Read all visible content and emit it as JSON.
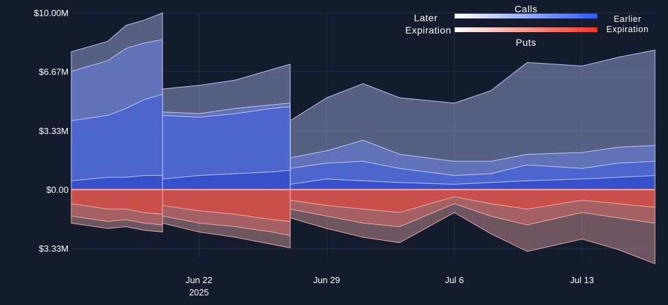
{
  "chart_data": {
    "type": "area",
    "x_range": [
      "2025-06-15",
      "2025-07-17"
    ],
    "ylim": [
      -3.9,
      10.0
    ],
    "y_units": "millions USD",
    "y_ticks": [
      {
        "value": 10.0,
        "label": "$10.00M"
      },
      {
        "value": 6.67,
        "label": "$6.67M"
      },
      {
        "value": 3.33,
        "label": "$3.33M"
      },
      {
        "value": 0.0,
        "label": "$0.00"
      },
      {
        "value": -3.33,
        "label": "$3.33M"
      }
    ],
    "x_ticks": [
      {
        "date": "2025-06-22",
        "label": "Jun 22",
        "sublabel": "2025"
      },
      {
        "date": "2025-06-29",
        "label": "Jun 29"
      },
      {
        "date": "2025-07-06",
        "label": "Jul 6"
      },
      {
        "date": "2025-07-13",
        "label": "Jul 13"
      }
    ],
    "grid": true,
    "legend": {
      "position": "top-right",
      "calls_label": "Calls",
      "puts_label": "Puts",
      "left_line1": "Later",
      "left_line2": "Expiration",
      "right_line1": "Earlier",
      "right_line2": "Expiration",
      "calls_gradient": [
        "#ffffff",
        "#2f5cf0"
      ],
      "puts_gradient": [
        "#ffffff",
        "#ec3526"
      ]
    },
    "expiration_segments": [
      {
        "start": "2025-06-15",
        "end": "2025-06-20"
      },
      {
        "start": "2025-06-20",
        "end": "2025-06-27"
      },
      {
        "start": "2025-06-27",
        "end": "2025-07-17"
      }
    ],
    "series": [
      {
        "side": "calls",
        "layer": 1,
        "points": [
          {
            "x": "2025-06-15",
            "y": 7.8
          },
          {
            "x": "2025-06-17",
            "y": 8.4
          },
          {
            "x": "2025-06-18",
            "y": 9.3
          },
          {
            "x": "2025-06-19",
            "y": 9.6
          },
          {
            "x": "2025-06-20",
            "y": 10.0
          },
          {
            "x": "2025-06-20",
            "y": 5.7
          },
          {
            "x": "2025-06-22",
            "y": 5.9
          },
          {
            "x": "2025-06-24",
            "y": 6.2
          },
          {
            "x": "2025-06-26",
            "y": 6.8
          },
          {
            "x": "2025-06-27",
            "y": 7.1
          },
          {
            "x": "2025-06-27",
            "y": 3.9
          },
          {
            "x": "2025-06-29",
            "y": 5.2
          },
          {
            "x": "2025-07-01",
            "y": 6.0
          },
          {
            "x": "2025-07-03",
            "y": 5.2
          },
          {
            "x": "2025-07-06",
            "y": 4.9
          },
          {
            "x": "2025-07-08",
            "y": 5.6
          },
          {
            "x": "2025-07-10",
            "y": 7.2
          },
          {
            "x": "2025-07-13",
            "y": 7.0
          },
          {
            "x": "2025-07-15",
            "y": 7.5
          },
          {
            "x": "2025-07-17",
            "y": 7.9
          }
        ]
      },
      {
        "side": "calls",
        "layer": 2,
        "points": [
          {
            "x": "2025-06-15",
            "y": 6.7
          },
          {
            "x": "2025-06-17",
            "y": 7.3
          },
          {
            "x": "2025-06-18",
            "y": 8.0
          },
          {
            "x": "2025-06-19",
            "y": 8.3
          },
          {
            "x": "2025-06-20",
            "y": 8.5
          },
          {
            "x": "2025-06-20",
            "y": 4.4
          },
          {
            "x": "2025-06-22",
            "y": 4.3
          },
          {
            "x": "2025-06-24",
            "y": 4.6
          },
          {
            "x": "2025-06-26",
            "y": 4.8
          },
          {
            "x": "2025-06-27",
            "y": 4.9
          },
          {
            "x": "2025-06-27",
            "y": 1.8
          },
          {
            "x": "2025-06-29",
            "y": 2.2
          },
          {
            "x": "2025-07-01",
            "y": 2.8
          },
          {
            "x": "2025-07-03",
            "y": 2.0
          },
          {
            "x": "2025-07-06",
            "y": 1.6
          },
          {
            "x": "2025-07-08",
            "y": 1.6
          },
          {
            "x": "2025-07-10",
            "y": 2.0
          },
          {
            "x": "2025-07-13",
            "y": 2.1
          },
          {
            "x": "2025-07-15",
            "y": 2.4
          },
          {
            "x": "2025-07-17",
            "y": 2.5
          }
        ]
      },
      {
        "side": "calls",
        "layer": 3,
        "points": [
          {
            "x": "2025-06-15",
            "y": 3.9
          },
          {
            "x": "2025-06-17",
            "y": 4.2
          },
          {
            "x": "2025-06-18",
            "y": 4.6
          },
          {
            "x": "2025-06-19",
            "y": 5.1
          },
          {
            "x": "2025-06-20",
            "y": 5.4
          },
          {
            "x": "2025-06-20",
            "y": 4.2
          },
          {
            "x": "2025-06-22",
            "y": 4.1
          },
          {
            "x": "2025-06-24",
            "y": 4.3
          },
          {
            "x": "2025-06-26",
            "y": 4.6
          },
          {
            "x": "2025-06-27",
            "y": 4.7
          },
          {
            "x": "2025-06-27",
            "y": 1.2
          },
          {
            "x": "2025-06-29",
            "y": 1.5
          },
          {
            "x": "2025-07-01",
            "y": 1.6
          },
          {
            "x": "2025-07-03",
            "y": 1.2
          },
          {
            "x": "2025-07-06",
            "y": 0.8
          },
          {
            "x": "2025-07-08",
            "y": 0.9
          },
          {
            "x": "2025-07-10",
            "y": 1.4
          },
          {
            "x": "2025-07-13",
            "y": 1.2
          },
          {
            "x": "2025-07-15",
            "y": 1.5
          },
          {
            "x": "2025-07-17",
            "y": 1.6
          }
        ]
      },
      {
        "side": "calls",
        "layer": 4,
        "points": [
          {
            "x": "2025-06-15",
            "y": 0.5
          },
          {
            "x": "2025-06-17",
            "y": 0.7
          },
          {
            "x": "2025-06-18",
            "y": 0.7
          },
          {
            "x": "2025-06-19",
            "y": 0.8
          },
          {
            "x": "2025-06-20",
            "y": 0.8
          },
          {
            "x": "2025-06-20",
            "y": 0.6
          },
          {
            "x": "2025-06-22",
            "y": 0.8
          },
          {
            "x": "2025-06-24",
            "y": 0.9
          },
          {
            "x": "2025-06-26",
            "y": 1.0
          },
          {
            "x": "2025-06-27",
            "y": 1.1
          },
          {
            "x": "2025-06-27",
            "y": 0.3
          },
          {
            "x": "2025-06-29",
            "y": 0.6
          },
          {
            "x": "2025-07-01",
            "y": 0.5
          },
          {
            "x": "2025-07-03",
            "y": 0.4
          },
          {
            "x": "2025-07-06",
            "y": 0.3
          },
          {
            "x": "2025-07-08",
            "y": 0.4
          },
          {
            "x": "2025-07-10",
            "y": 0.5
          },
          {
            "x": "2025-07-13",
            "y": 0.6
          },
          {
            "x": "2025-07-15",
            "y": 0.7
          },
          {
            "x": "2025-07-17",
            "y": 0.8
          }
        ]
      },
      {
        "side": "puts",
        "layer": 1,
        "points": [
          {
            "x": "2025-06-15",
            "y": -1.9
          },
          {
            "x": "2025-06-17",
            "y": -2.2
          },
          {
            "x": "2025-06-18",
            "y": -2.1
          },
          {
            "x": "2025-06-19",
            "y": -2.3
          },
          {
            "x": "2025-06-20",
            "y": -2.4
          },
          {
            "x": "2025-06-20",
            "y": -1.9
          },
          {
            "x": "2025-06-22",
            "y": -2.4
          },
          {
            "x": "2025-06-24",
            "y": -2.7
          },
          {
            "x": "2025-06-26",
            "y": -3.1
          },
          {
            "x": "2025-06-27",
            "y": -3.3
          },
          {
            "x": "2025-06-27",
            "y": -1.6
          },
          {
            "x": "2025-06-29",
            "y": -2.2
          },
          {
            "x": "2025-07-01",
            "y": -2.7
          },
          {
            "x": "2025-07-03",
            "y": -3.0
          },
          {
            "x": "2025-07-06",
            "y": -1.3
          },
          {
            "x": "2025-07-08",
            "y": -2.5
          },
          {
            "x": "2025-07-10",
            "y": -3.5
          },
          {
            "x": "2025-07-13",
            "y": -2.8
          },
          {
            "x": "2025-07-15",
            "y": -3.4
          },
          {
            "x": "2025-07-17",
            "y": -4.2
          }
        ]
      },
      {
        "side": "puts",
        "layer": 2,
        "points": [
          {
            "x": "2025-06-15",
            "y": -1.5
          },
          {
            "x": "2025-06-17",
            "y": -1.8
          },
          {
            "x": "2025-06-18",
            "y": -1.7
          },
          {
            "x": "2025-06-19",
            "y": -1.9
          },
          {
            "x": "2025-06-20",
            "y": -2.0
          },
          {
            "x": "2025-06-20",
            "y": -1.5
          },
          {
            "x": "2025-06-22",
            "y": -1.9
          },
          {
            "x": "2025-06-24",
            "y": -2.1
          },
          {
            "x": "2025-06-26",
            "y": -2.4
          },
          {
            "x": "2025-06-27",
            "y": -2.6
          },
          {
            "x": "2025-06-27",
            "y": -1.1
          },
          {
            "x": "2025-06-29",
            "y": -1.5
          },
          {
            "x": "2025-07-01",
            "y": -1.9
          },
          {
            "x": "2025-07-03",
            "y": -2.1
          },
          {
            "x": "2025-07-06",
            "y": -0.8
          },
          {
            "x": "2025-07-08",
            "y": -1.5
          },
          {
            "x": "2025-07-10",
            "y": -2.0
          },
          {
            "x": "2025-07-13",
            "y": -1.3
          },
          {
            "x": "2025-07-15",
            "y": -1.6
          },
          {
            "x": "2025-07-17",
            "y": -1.9
          }
        ]
      },
      {
        "side": "puts",
        "layer": 3,
        "points": [
          {
            "x": "2025-06-15",
            "y": -0.8
          },
          {
            "x": "2025-06-17",
            "y": -1.1
          },
          {
            "x": "2025-06-18",
            "y": -1.1
          },
          {
            "x": "2025-06-19",
            "y": -1.3
          },
          {
            "x": "2025-06-20",
            "y": -1.4
          },
          {
            "x": "2025-06-20",
            "y": -0.9
          },
          {
            "x": "2025-06-22",
            "y": -1.2
          },
          {
            "x": "2025-06-24",
            "y": -1.4
          },
          {
            "x": "2025-06-26",
            "y": -1.7
          },
          {
            "x": "2025-06-27",
            "y": -1.8
          },
          {
            "x": "2025-06-27",
            "y": -0.6
          },
          {
            "x": "2025-06-29",
            "y": -0.9
          },
          {
            "x": "2025-07-01",
            "y": -1.1
          },
          {
            "x": "2025-07-03",
            "y": -1.3
          },
          {
            "x": "2025-07-06",
            "y": -0.4
          },
          {
            "x": "2025-07-08",
            "y": -0.8
          },
          {
            "x": "2025-07-10",
            "y": -1.1
          },
          {
            "x": "2025-07-13",
            "y": -0.6
          },
          {
            "x": "2025-07-15",
            "y": -0.8
          },
          {
            "x": "2025-07-17",
            "y": -1.0
          }
        ]
      }
    ]
  }
}
